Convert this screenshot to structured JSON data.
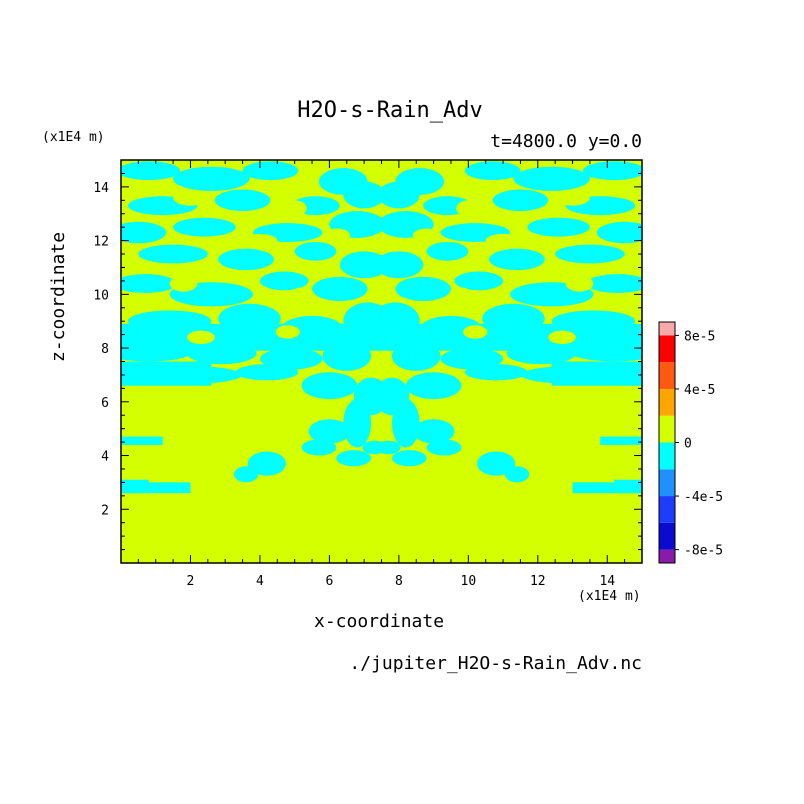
{
  "chart_data": {
    "type": "heatmap",
    "title": "H2O-s-Rain_Adv",
    "subtitle": "t=4800.0 y=0.0",
    "xlabel": "x-coordinate",
    "ylabel": "z-coordinate",
    "x_unit": "(x1E4 m)",
    "y_unit": "(x1E4 m)",
    "xlim": [
      0,
      15
    ],
    "ylim": [
      0,
      15
    ],
    "x_ticks": [
      2,
      4,
      6,
      8,
      10,
      12,
      14
    ],
    "y_ticks": [
      2,
      4,
      6,
      8,
      10,
      12,
      14
    ],
    "colorbar": {
      "levels": [
        -9e-05,
        -8e-05,
        -6e-05,
        -4e-05,
        -2e-05,
        0,
        2e-05,
        4e-05,
        6e-05,
        8e-05,
        9e-05
      ],
      "colors": [
        "#8a1aa8",
        "#0a0ad0",
        "#1e3cff",
        "#1e90ff",
        "#00ffff",
        "#d4ff00",
        "#ffa500",
        "#ff5a10",
        "#ff0000",
        "#f8aaaa"
      ],
      "tick_labels": [
        {
          "label": "8e-5",
          "value": 8e-05
        },
        {
          "label": "4e-5",
          "value": 4e-05
        },
        {
          "label": "0",
          "value": 0
        },
        {
          "label": "-4e-5",
          "value": -4e-05
        },
        {
          "label": "-8e-5",
          "value": -8e-05
        }
      ]
    },
    "field": {
      "background": "#d4ff00",
      "negative_color": "#00ffff",
      "description_regions": [
        {
          "z": [
            2.6,
            3.0
          ],
          "x": [
            0,
            3.5
          ]
        },
        {
          "z": [
            2.6,
            3.0
          ],
          "x": [
            11.5,
            15
          ]
        },
        {
          "z": [
            6.5,
            15
          ],
          "x": [
            0,
            15
          ]
        }
      ]
    }
  },
  "source_file": "./jupiter_H2O-s-Rain_Adv.nc"
}
